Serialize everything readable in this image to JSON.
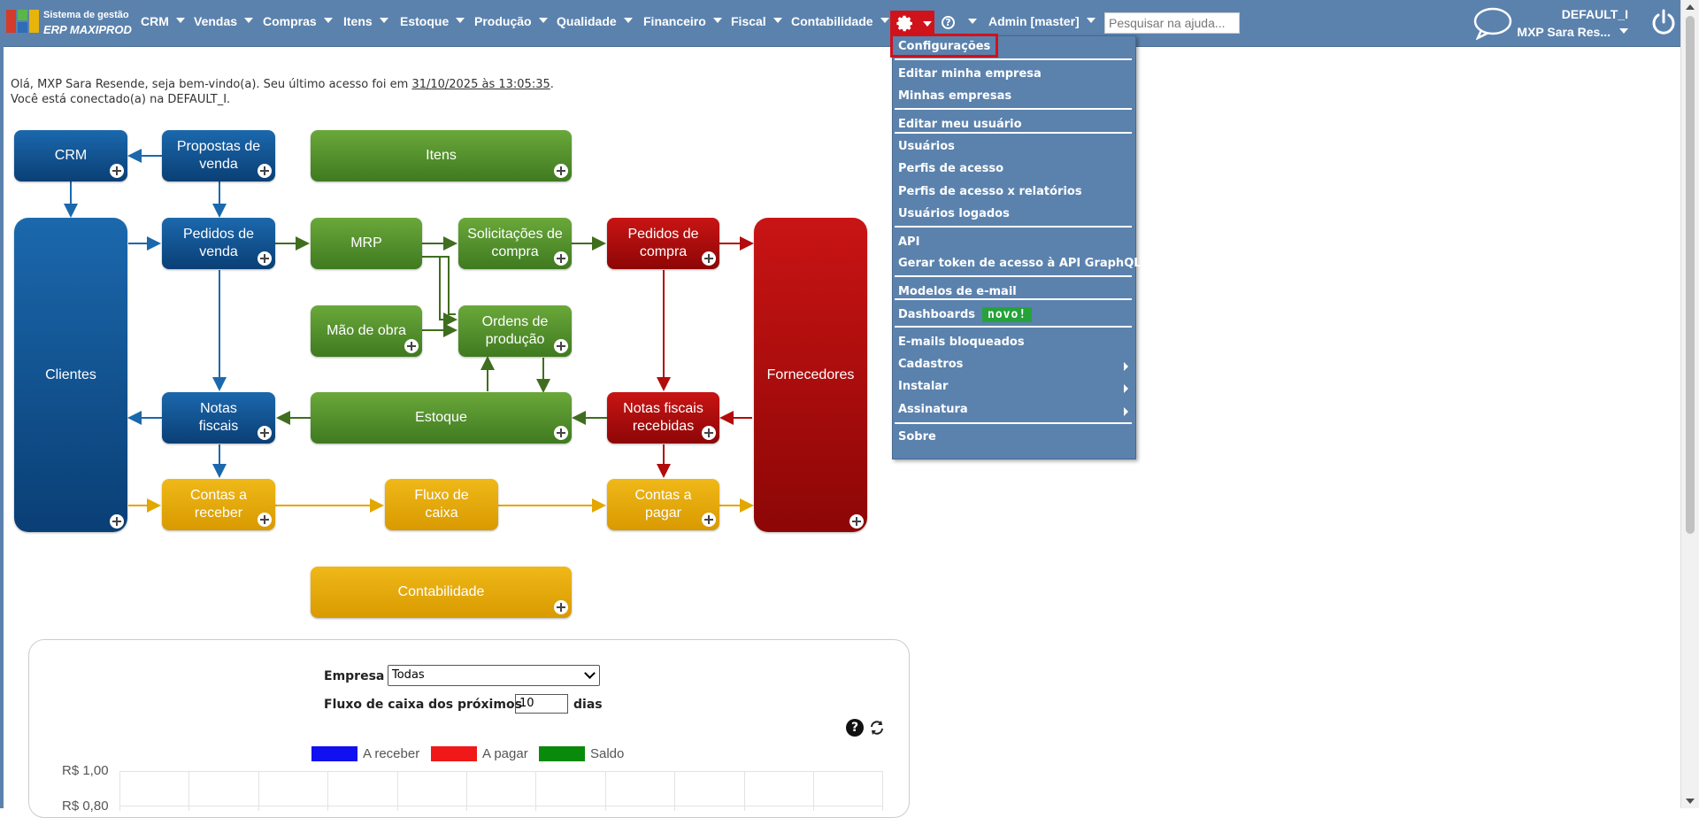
{
  "brand": {
    "line1": "Sistema de gestão",
    "line2": "ERP MAXIPROD"
  },
  "nav": {
    "items": [
      "CRM",
      "Vendas",
      "Compras",
      "Itens",
      "Estoque",
      "Produção",
      "Qualidade",
      "Financeiro",
      "Fiscal",
      "Contabilidade"
    ],
    "user_menu": "Admin [master]",
    "search_placeholder": "Pesquisar na ajuda..."
  },
  "user": {
    "company": "DEFAULT_I",
    "name": "MXP Sara Res..."
  },
  "settings_menu": {
    "items": [
      "Configurações",
      "Editar minha empresa",
      "Minhas empresas",
      "Editar meu usuário",
      "Usuários",
      "Perfis de acesso",
      "Perfis de acesso x relatórios",
      "Usuários logados",
      "API",
      "Gerar token de acesso à API GraphQL",
      "Modelos de e-mail",
      "Dashboards",
      "E-mails bloqueados",
      "Cadastros",
      "Instalar",
      "Assinatura",
      "Sobre"
    ],
    "badge": "novo!"
  },
  "welcome": {
    "line1_pre": "Olá, MXP Sara Resende, seja bem-vindo(a). Seu último acesso foi em",
    "line1_link": "31/10/2025 às 13:05:35",
    "line1_post": ".",
    "line2": "Você está conectado(a) na DEFAULT_I."
  },
  "flow": {
    "crm": "CRM",
    "propostas": [
      "Propostas de",
      "venda"
    ],
    "itens": "Itens",
    "clientes": "Clientes",
    "pedidos_venda": [
      "Pedidos de",
      "venda"
    ],
    "mrp": "MRP",
    "solicitacoes": [
      "Solicitações de",
      "compra"
    ],
    "pedidos_compra": [
      "Pedidos de",
      "compra"
    ],
    "fornecedores": "Fornecedores",
    "mao_obra": "Mão de obra",
    "ordens": [
      "Ordens de",
      "produção"
    ],
    "notas": [
      "Notas",
      "fiscais"
    ],
    "estoque": "Estoque",
    "notas_recebidas": [
      "Notas fiscais",
      "recebidas"
    ],
    "contas_receber": [
      "Contas a",
      "receber"
    ],
    "fluxo_caixa": [
      "Fluxo de",
      "caixa"
    ],
    "contas_pagar": [
      "Contas a",
      "pagar"
    ],
    "contabilidade": "Contabilidade"
  },
  "cashflow": {
    "empresa_label": "Empresa",
    "empresa_value": "Todas",
    "fluxo_label": "Fluxo de caixa dos próximos",
    "fluxo_value": "10",
    "dias_label": "dias",
    "legend": [
      {
        "label": "A receber",
        "color": "#1010f0"
      },
      {
        "label": "A pagar",
        "color": "#f01818"
      },
      {
        "label": "Saldo",
        "color": "#0a8a0a"
      }
    ],
    "y_labels": [
      "R$ 1,00",
      "R$ 0,80"
    ]
  },
  "colors": {
    "nav_bg": "#5b82ad",
    "blue": "#0c4f8f",
    "green": "#4f8f2a",
    "red": "#b00a0a",
    "yellow": "#e3a700",
    "highlight": "#d0121b"
  }
}
